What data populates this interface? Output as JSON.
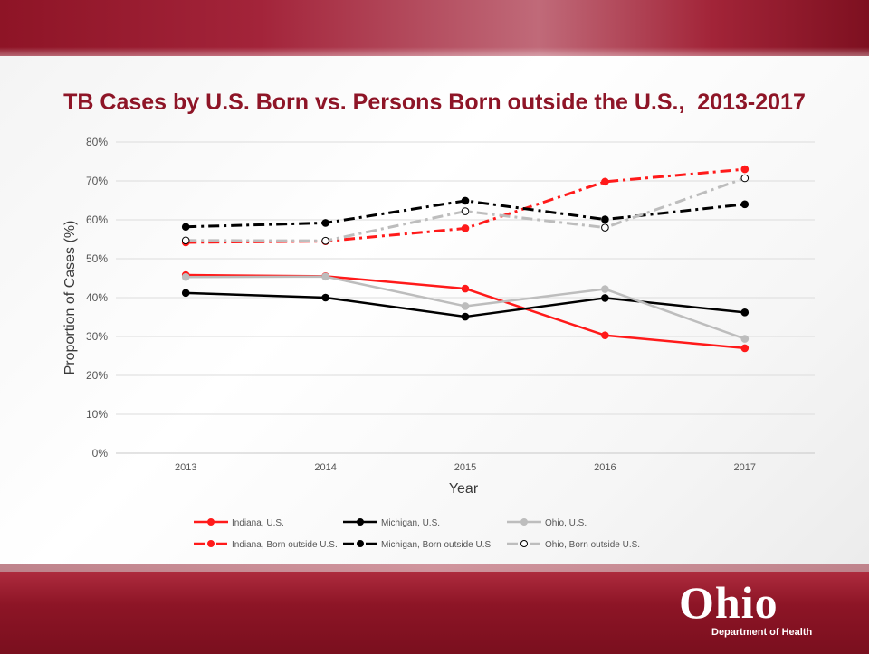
{
  "slide": {
    "title": "TB Cases by U.S. Born vs. Persons Born outside the U.S.,  2013-2017",
    "logo": {
      "word": "Ohio",
      "subtitle": "Department of Health"
    }
  },
  "colors": {
    "banner": "#8e1527",
    "title": "#8e1527",
    "indiana": "#ff1a1a",
    "michigan": "#000000",
    "ohio": "#bdbdbd"
  },
  "chart_data": {
    "type": "line",
    "xlabel": "Year",
    "ylabel": "Proportion of Cases (%)",
    "ylim": [
      0,
      80
    ],
    "yticks": [
      "0%",
      "10%",
      "20%",
      "30%",
      "40%",
      "50%",
      "60%",
      "70%",
      "80%"
    ],
    "categories": [
      "2013",
      "2014",
      "2015",
      "2016",
      "2017"
    ],
    "grid": "horizontal",
    "legend_position": "bottom",
    "series": [
      {
        "name": "Indiana, U.S.",
        "values": [
          45.8,
          45.5,
          42.3,
          30.3,
          27.0
        ],
        "color": "#ff1a1a",
        "dash": "solid",
        "marker": "filled"
      },
      {
        "name": "Michigan, U.S.",
        "values": [
          41.2,
          40.0,
          35.1,
          39.9,
          36.2
        ],
        "color": "#000000",
        "dash": "solid",
        "marker": "filled"
      },
      {
        "name": "Ohio, U.S.",
        "values": [
          45.3,
          45.4,
          37.8,
          42.2,
          29.4
        ],
        "color": "#bdbdbd",
        "dash": "solid",
        "marker": "filled"
      },
      {
        "name": "Indiana, Born outside U.S.",
        "values": [
          54.2,
          54.5,
          57.8,
          69.8,
          73.0
        ],
        "color": "#ff1a1a",
        "dash": "dashdot",
        "marker": "filled"
      },
      {
        "name": "Michigan, Born outside U.S.",
        "values": [
          58.2,
          59.2,
          64.9,
          60.1,
          64.0
        ],
        "color": "#000000",
        "dash": "dashdot",
        "marker": "filled"
      },
      {
        "name": "Ohio, Born outside U.S.",
        "values": [
          54.7,
          54.6,
          62.2,
          58.0,
          70.7
        ],
        "color": "#bdbdbd",
        "dash": "dashdot",
        "marker": "open"
      }
    ]
  }
}
